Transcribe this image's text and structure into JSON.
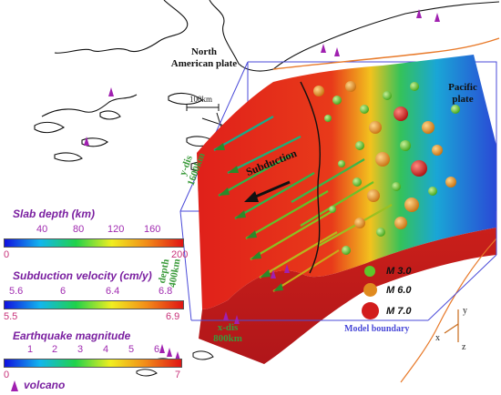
{
  "labels": {
    "north_american_plate": [
      "North",
      "American plate"
    ],
    "pacific_plate": [
      "Pacific",
      "plate"
    ],
    "scale_bar": "100km",
    "subduction": "Subduction",
    "y_dis": [
      "y-dis",
      "1600km"
    ],
    "depth": [
      "depth",
      "400km"
    ],
    "x_dis": [
      "x-dis",
      "800km"
    ],
    "model_boundary": "Model boundary",
    "axes": {
      "x": "x",
      "y": "y",
      "z": "z"
    }
  },
  "legend": {
    "slab_depth": {
      "title": "Slab depth (km)",
      "top_ticks": [
        "40",
        "80",
        "120",
        "160"
      ],
      "bottom_ticks": [
        "0",
        "200"
      ]
    },
    "subduction_velocity": {
      "title": "Subduction velocity (cm/y)",
      "top_ticks": [
        "5.6",
        "6",
        "6.4",
        "6.8"
      ],
      "bottom_ticks": [
        "5.5",
        "6.9"
      ]
    },
    "earthquake_magnitude": {
      "title": "Earthquake magnitude",
      "top_ticks": [
        "1",
        "2",
        "3",
        "4",
        "5",
        "6"
      ],
      "bottom_ticks": [
        "0",
        "7"
      ]
    },
    "volcano": "volcano",
    "magnitudes": [
      {
        "label": "M 3.0",
        "color": "#5ec62a"
      },
      {
        "label": "M 6.0",
        "color": "#e08a1e"
      },
      {
        "label": "M 7.0",
        "color": "#d21c1c"
      }
    ]
  },
  "colors": {
    "volcano": "#a020b0",
    "box_edge": "#4a4ad8",
    "slab_red": "#e0201a",
    "trench": "#e87a2a",
    "legend_title": "#7a1fa0"
  }
}
